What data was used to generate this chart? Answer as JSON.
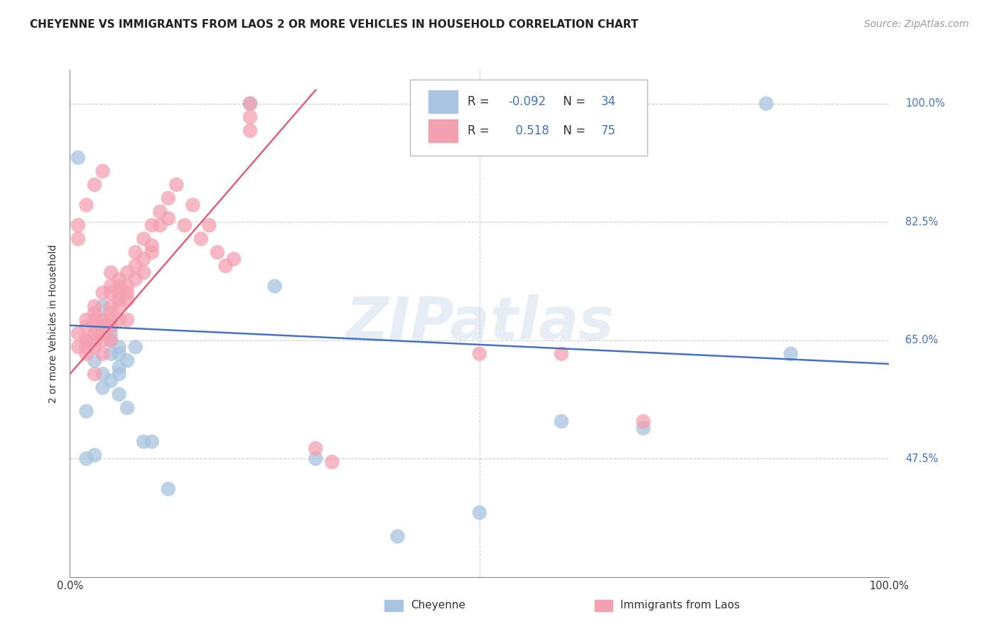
{
  "title": "CHEYENNE VS IMMIGRANTS FROM LAOS 2 OR MORE VEHICLES IN HOUSEHOLD CORRELATION CHART",
  "source": "Source: ZipAtlas.com",
  "ylabel": "2 or more Vehicles in Household",
  "watermark": "ZIPatlas",
  "xlim": [
    0.0,
    1.0
  ],
  "ylim": [
    0.3,
    1.05
  ],
  "yticks": [
    0.475,
    0.65,
    0.825,
    1.0
  ],
  "ytick_labels": [
    "47.5%",
    "65.0%",
    "82.5%",
    "100.0%"
  ],
  "cheyenne_color": "#a8c4e0",
  "cheyenne_edge_color": "#6a9ec0",
  "laos_color": "#f4a0b0",
  "laos_edge_color": "#e06080",
  "cheyenne_R": -0.092,
  "cheyenne_N": 34,
  "laos_R": 0.518,
  "laos_N": 75,
  "trend_blue": "#4472c4",
  "trend_pink": "#e0607a",
  "title_fontsize": 11,
  "axis_label_fontsize": 10,
  "tick_fontsize": 10.5,
  "source_fontsize": 10,
  "background_color": "#ffffff",
  "grid_color": "#cccccc",
  "cheyenne_line_x": [
    0.0,
    1.0
  ],
  "cheyenne_line_y": [
    0.672,
    0.615
  ],
  "laos_line_x": [
    0.0,
    0.3
  ],
  "laos_line_y": [
    0.6,
    1.02
  ],
  "cheyenne_x": [
    0.02,
    0.03,
    0.03,
    0.04,
    0.04,
    0.04,
    0.04,
    0.04,
    0.05,
    0.05,
    0.05,
    0.05,
    0.06,
    0.06,
    0.06,
    0.06,
    0.06,
    0.07,
    0.07,
    0.08,
    0.09,
    0.1,
    0.12,
    0.22,
    0.88,
    0.85,
    0.6,
    0.7,
    0.4,
    0.5,
    0.3,
    0.25,
    0.02,
    0.01
  ],
  "cheyenne_y": [
    0.545,
    0.62,
    0.48,
    0.7,
    0.68,
    0.67,
    0.6,
    0.58,
    0.66,
    0.65,
    0.63,
    0.59,
    0.64,
    0.63,
    0.61,
    0.6,
    0.57,
    0.62,
    0.55,
    0.64,
    0.5,
    0.5,
    0.43,
    1.0,
    0.63,
    1.0,
    0.53,
    0.52,
    0.36,
    0.395,
    0.475,
    0.73,
    0.475,
    0.92
  ],
  "laos_x": [
    0.01,
    0.01,
    0.02,
    0.02,
    0.02,
    0.02,
    0.02,
    0.02,
    0.03,
    0.03,
    0.03,
    0.03,
    0.03,
    0.03,
    0.03,
    0.03,
    0.04,
    0.04,
    0.04,
    0.04,
    0.04,
    0.04,
    0.05,
    0.05,
    0.05,
    0.05,
    0.05,
    0.05,
    0.05,
    0.05,
    0.06,
    0.06,
    0.06,
    0.06,
    0.06,
    0.06,
    0.07,
    0.07,
    0.07,
    0.07,
    0.07,
    0.08,
    0.08,
    0.08,
    0.09,
    0.09,
    0.09,
    0.1,
    0.1,
    0.1,
    0.11,
    0.11,
    0.12,
    0.12,
    0.13,
    0.14,
    0.15,
    0.16,
    0.17,
    0.18,
    0.19,
    0.2,
    0.22,
    0.22,
    0.22,
    0.3,
    0.32,
    0.5,
    0.6,
    0.7,
    0.01,
    0.01,
    0.02,
    0.03,
    0.04
  ],
  "laos_y": [
    0.64,
    0.66,
    0.63,
    0.65,
    0.65,
    0.67,
    0.68,
    0.64,
    0.65,
    0.66,
    0.67,
    0.68,
    0.69,
    0.7,
    0.6,
    0.64,
    0.65,
    0.63,
    0.66,
    0.67,
    0.68,
    0.72,
    0.7,
    0.69,
    0.68,
    0.67,
    0.72,
    0.73,
    0.65,
    0.75,
    0.71,
    0.72,
    0.73,
    0.74,
    0.68,
    0.7,
    0.73,
    0.75,
    0.71,
    0.68,
    0.72,
    0.74,
    0.76,
    0.78,
    0.77,
    0.8,
    0.75,
    0.79,
    0.82,
    0.78,
    0.82,
    0.84,
    0.86,
    0.83,
    0.88,
    0.82,
    0.85,
    0.8,
    0.82,
    0.78,
    0.76,
    0.77,
    0.98,
    1.0,
    0.96,
    0.49,
    0.47,
    0.63,
    0.63,
    0.53,
    0.8,
    0.82,
    0.85,
    0.88,
    0.9
  ]
}
